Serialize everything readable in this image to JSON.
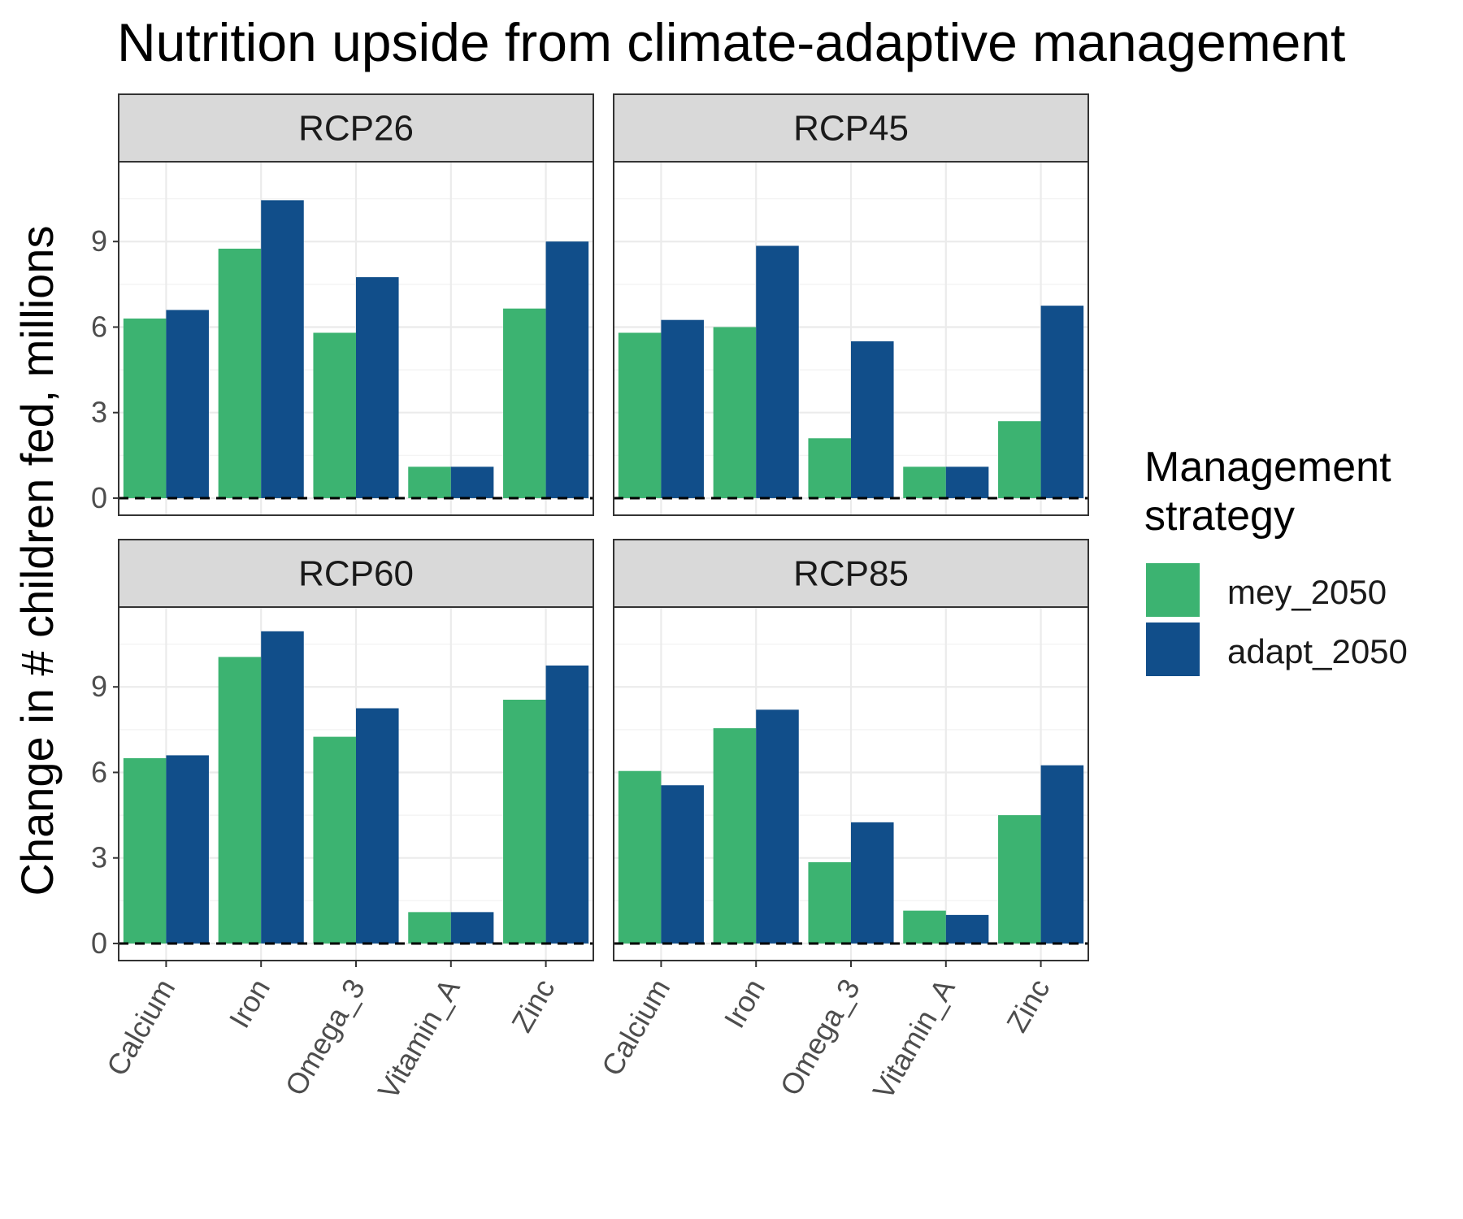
{
  "chart_data": {
    "type": "bar",
    "title": "Nutrition upside from climate-adaptive management",
    "xlabel": "",
    "ylabel": "Change in # children fed, millions",
    "ylim": [
      -0.6,
      11.8
    ],
    "y_ticks": [
      0,
      3,
      6,
      9
    ],
    "reference_line": {
      "y": 0,
      "style": "dashed"
    },
    "grid": true,
    "categories": [
      "Calcium",
      "Iron",
      "Omega_3",
      "Vitamin_A",
      "Zinc"
    ],
    "legend": {
      "title_lines": [
        "Management",
        "strategy"
      ],
      "placement": "right",
      "entries": [
        {
          "name": "mey_2050",
          "color": "#3CB371"
        },
        {
          "name": "adapt_2050",
          "color": "#114E8A"
        }
      ]
    },
    "panels": [
      {
        "label": "RCP26",
        "series": [
          {
            "name": "mey_2050",
            "values": [
              6.3,
              8.75,
              5.8,
              1.1,
              6.65
            ]
          },
          {
            "name": "adapt_2050",
            "values": [
              6.6,
              10.45,
              7.75,
              1.1,
              9.0
            ]
          }
        ]
      },
      {
        "label": "RCP45",
        "series": [
          {
            "name": "mey_2050",
            "values": [
              5.8,
              6.0,
              2.1,
              1.1,
              2.7
            ]
          },
          {
            "name": "adapt_2050",
            "values": [
              6.25,
              8.85,
              5.5,
              1.1,
              6.75
            ]
          }
        ]
      },
      {
        "label": "RCP60",
        "series": [
          {
            "name": "mey_2050",
            "values": [
              6.5,
              10.05,
              7.25,
              1.1,
              8.55
            ]
          },
          {
            "name": "adapt_2050",
            "values": [
              6.6,
              10.95,
              8.25,
              1.1,
              9.75
            ]
          }
        ]
      },
      {
        "label": "RCP85",
        "series": [
          {
            "name": "mey_2050",
            "values": [
              6.05,
              7.55,
              2.85,
              1.15,
              4.5
            ]
          },
          {
            "name": "adapt_2050",
            "values": [
              5.55,
              8.2,
              4.25,
              1.0,
              6.25
            ]
          }
        ]
      }
    ]
  }
}
